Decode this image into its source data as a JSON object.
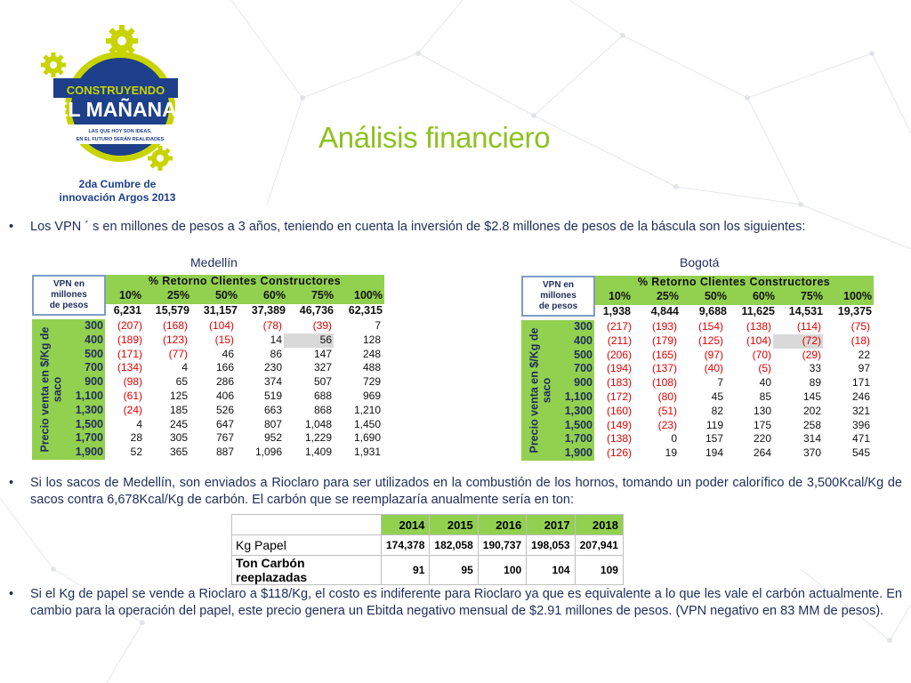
{
  "logo": {
    "line1": "CONSTRUYENDO",
    "line2": "EL MAÑANA",
    "tagline1": "LAS QUE HOY SON IDEAS,",
    "tagline2": "EN EL FUTURO SERÁN REALIDADES",
    "event1": "2da Cumbre de",
    "event2": "innovación Argos 2013"
  },
  "title": "Análisis financiero",
  "bullets": {
    "marker": "•",
    "b1": "Los VPN ´ s en millones de pesos a 3 años, teniendo en cuenta la inversión de $2.8 millones de pesos de la báscula son los siguientes:",
    "b2": "Si los sacos de Medellín, son enviados a Rioclaro para ser utilizados en la combustión de los hornos, tomando un poder calorífico de 3,500Kcal/Kg de sacos contra 6,678Kcal/Kg de carbón. El carbón que se reemplazaría anualmente sería en ton:",
    "b3": "Si el Kg de papel se vende a Rioclaro a $118/Kg, el costo es indiferente para Rioclaro ya que es equivalente a lo que les vale el carbón actualmente. En cambio para la operación del papel, este precio genera un Ebitda negativo mensual de $2.91 millones de pesos. (VPN negativo en 83 MM de pesos)."
  },
  "tables": {
    "corner": [
      "VPN en",
      "millones",
      "de pesos"
    ],
    "header_title": "% Retorno Clientes Constructores",
    "side_label_line1": "Precio venta en $/Kg de",
    "side_label_line2": "saco",
    "pcts": [
      "10%",
      "25%",
      "50%",
      "60%",
      "75%",
      "100%"
    ],
    "prices": [
      "300",
      "400",
      "500",
      "700",
      "900",
      "1,100",
      "1,300",
      "1,500",
      "1,700",
      "1,900"
    ],
    "medellin": {
      "city": "Medellín",
      "base": [
        "6,231",
        "15,579",
        "31,157",
        "37,389",
        "46,736",
        "62,315"
      ],
      "rows": [
        [
          "(207)",
          "(168)",
          "(104)",
          "(78)",
          "(39)",
          "7"
        ],
        [
          "(189)",
          "(123)",
          "(15)",
          "14",
          "56",
          "128"
        ],
        [
          "(171)",
          "(77)",
          "46",
          "86",
          "147",
          "248"
        ],
        [
          "(134)",
          "4",
          "166",
          "230",
          "327",
          "488"
        ],
        [
          "(98)",
          "65",
          "286",
          "374",
          "507",
          "729"
        ],
        [
          "(61)",
          "125",
          "406",
          "519",
          "688",
          "969"
        ],
        [
          "(24)",
          "185",
          "526",
          "663",
          "868",
          "1,210"
        ],
        [
          "4",
          "245",
          "647",
          "807",
          "1,048",
          "1,450"
        ],
        [
          "28",
          "305",
          "767",
          "952",
          "1,229",
          "1,690"
        ],
        [
          "52",
          "365",
          "887",
          "1,096",
          "1,409",
          "1,931"
        ]
      ]
    },
    "bogota": {
      "city": "Bogotá",
      "base": [
        "1,938",
        "4,844",
        "9,688",
        "11,625",
        "14,531",
        "19,375"
      ],
      "rows": [
        [
          "(217)",
          "(193)",
          "(154)",
          "(138)",
          "(114)",
          "(75)"
        ],
        [
          "(211)",
          "(179)",
          "(125)",
          "(104)",
          "(72)",
          "(18)"
        ],
        [
          "(206)",
          "(165)",
          "(97)",
          "(70)",
          "(29)",
          "22"
        ],
        [
          "(194)",
          "(137)",
          "(40)",
          "(5)",
          "33",
          "97"
        ],
        [
          "(183)",
          "(108)",
          "7",
          "40",
          "89",
          "171"
        ],
        [
          "(172)",
          "(80)",
          "45",
          "85",
          "145",
          "246"
        ],
        [
          "(160)",
          "(51)",
          "82",
          "130",
          "202",
          "321"
        ],
        [
          "(149)",
          "(23)",
          "119",
          "175",
          "258",
          "396"
        ],
        [
          "(138)",
          "0",
          "157",
          "220",
          "314",
          "471"
        ],
        [
          "(126)",
          "19",
          "194",
          "264",
          "370",
          "545"
        ]
      ]
    }
  },
  "ton_table": {
    "years": [
      "2014",
      "2015",
      "2016",
      "2017",
      "2018"
    ],
    "kg_label": "Kg Papel",
    "kg_values": [
      "174,378",
      "182,058",
      "190,737",
      "198,053",
      "207,941"
    ],
    "ton_label": "Ton Carbón reeplazadas",
    "ton_values": [
      "91",
      "95",
      "100",
      "104",
      "109"
    ]
  },
  "colors": {
    "title_green": "#8dc21f",
    "header_green": "#92d050",
    "text_navy": "#1f2d5a",
    "negative_red": "#e00000"
  }
}
